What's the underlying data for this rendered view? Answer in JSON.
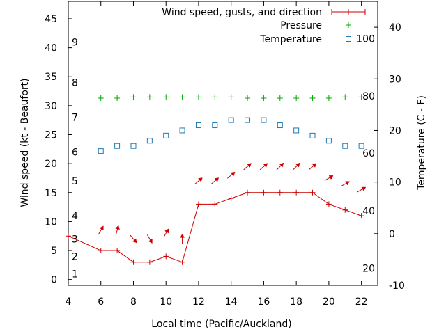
{
  "chart_data": {
    "type": "line",
    "xlabel": "Local time (Pacific/Auckland)",
    "ylabel": "Wind speed (kt - Beaufort)",
    "y2label": "Temperature (C - F)",
    "xlim": [
      4,
      23
    ],
    "ylim": [
      -1,
      48
    ],
    "y2lim": [
      -10,
      45
    ],
    "grid": false,
    "legend_position": "top-right",
    "x_ticks": [
      4,
      6,
      8,
      10,
      12,
      14,
      16,
      18,
      20,
      22
    ],
    "y_ticks": [
      0,
      5,
      10,
      15,
      20,
      25,
      30,
      35,
      40,
      45
    ],
    "y2_ticks": [
      -10,
      0,
      10,
      20,
      30,
      40
    ],
    "beaufort_labels": [
      {
        "label": "1",
        "y": 1
      },
      {
        "label": "2",
        "y": 4
      },
      {
        "label": "3",
        "y": 7
      },
      {
        "label": "4",
        "y": 11
      },
      {
        "label": "5",
        "y": 17
      },
      {
        "label": "6",
        "y": 22
      },
      {
        "label": "7",
        "y": 28
      },
      {
        "label": "8",
        "y": 34
      },
      {
        "label": "9",
        "y": 41
      }
    ],
    "fahrenheit_labels": [
      {
        "label": "20",
        "y2": -6.7
      },
      {
        "label": "40",
        "y2": 4.4
      },
      {
        "label": "60",
        "y2": 15.6
      },
      {
        "label": "80",
        "y2": 26.7
      },
      {
        "label": "100",
        "y2": 37.8
      }
    ],
    "series": [
      {
        "name": "Wind speed, gusts, and direction",
        "color": "#cc0000",
        "x": [
          4,
          6,
          7,
          8,
          9,
          10,
          11,
          12,
          13,
          14,
          15,
          16,
          17,
          18,
          19,
          20,
          21,
          22
        ],
        "y": [
          7.5,
          5,
          5,
          3,
          3,
          4,
          3,
          13,
          13,
          14,
          15,
          15,
          15,
          15,
          15,
          13,
          12,
          11
        ]
      },
      {
        "name": "Pressure",
        "color": "#00aa00",
        "x": [
          6,
          7,
          8,
          9,
          10,
          11,
          12,
          13,
          14,
          15,
          16,
          17,
          18,
          19,
          20,
          21,
          22
        ],
        "y": [
          31.3,
          31.3,
          31.5,
          31.5,
          31.5,
          31.5,
          31.5,
          31.5,
          31.5,
          31.3,
          31.3,
          31.3,
          31.3,
          31.3,
          31.3,
          31.5,
          31.5
        ]
      },
      {
        "name": "Temperature",
        "color": "#1f77b4",
        "x": [
          6,
          7,
          8,
          9,
          10,
          11,
          12,
          13,
          14,
          15,
          16,
          17,
          18,
          19,
          20,
          21,
          22
        ],
        "y2": [
          16,
          17,
          17,
          18,
          19,
          20,
          21,
          21,
          22,
          22,
          22,
          21,
          20,
          19,
          18,
          17,
          17
        ]
      }
    ],
    "wind_direction": {
      "color": "#cc0000",
      "x": [
        6,
        7,
        8,
        9,
        10,
        11,
        12,
        13,
        14,
        15,
        16,
        17,
        18,
        19,
        20,
        21,
        22
      ],
      "y": [
        8.5,
        8.5,
        7,
        7,
        8,
        7,
        17,
        17,
        18,
        19.5,
        19.5,
        19.5,
        19.5,
        19.5,
        17.5,
        16.5,
        15.5
      ],
      "direction_deg": [
        30,
        15,
        140,
        150,
        30,
        0,
        50,
        50,
        50,
        50,
        50,
        45,
        45,
        50,
        60,
        60,
        60
      ]
    }
  }
}
